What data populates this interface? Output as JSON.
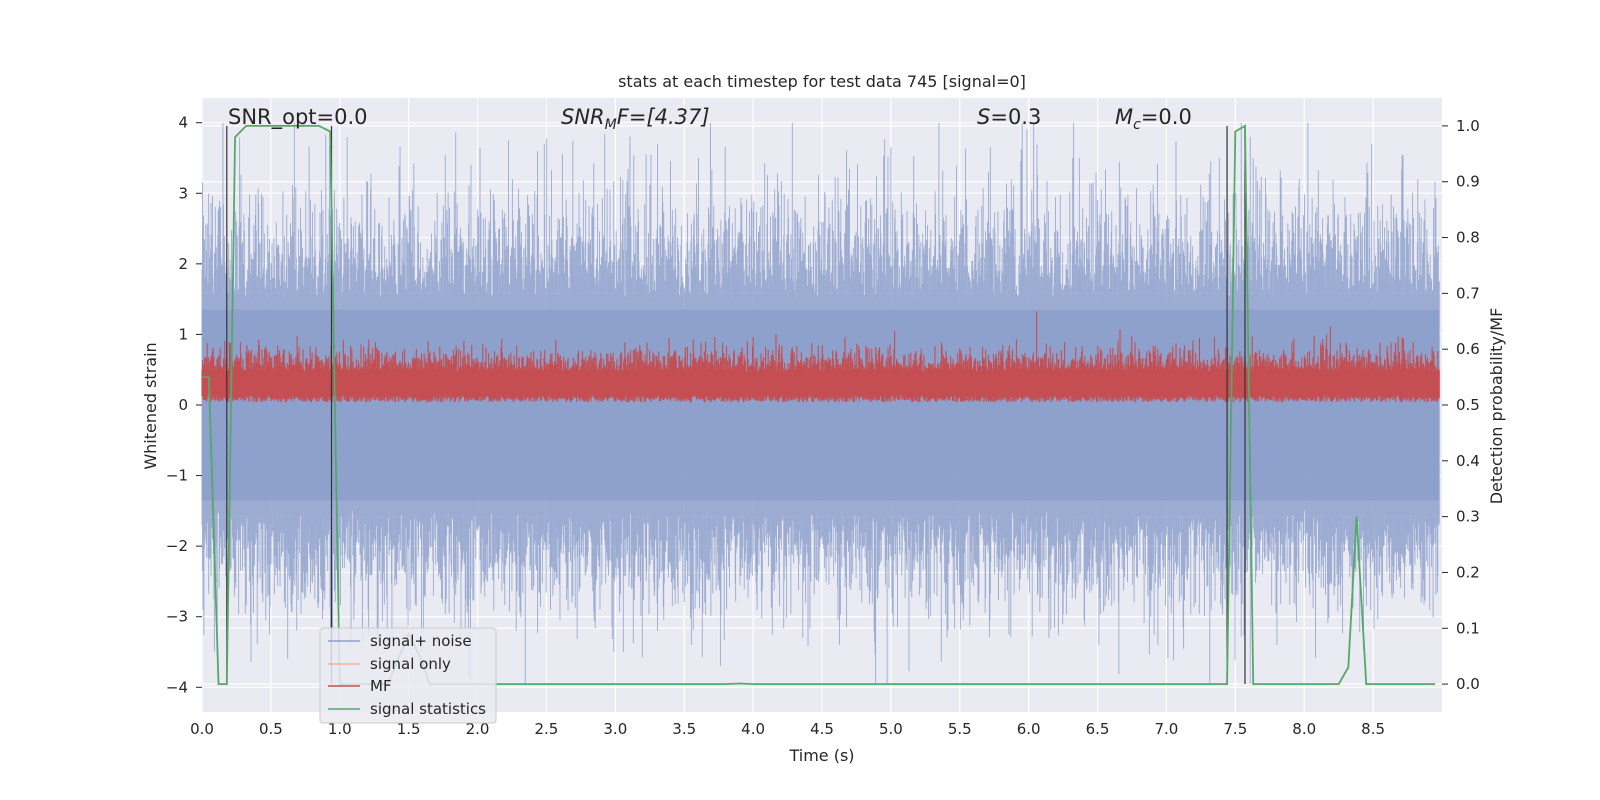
{
  "chart_data": {
    "type": "line",
    "title": "stats at each timestep for test data 745 [signal=0]",
    "xlabel": "Time (s)",
    "ylabel_left": "Whitened strain",
    "ylabel_right": "Detection probability/MF",
    "xlim": [
      0.0,
      9.0
    ],
    "ylim_left": [
      -4.35,
      4.35
    ],
    "ylim_right": [
      -0.05,
      1.05
    ],
    "xticks": [
      "0.0",
      "0.5",
      "1.0",
      "1.5",
      "2.0",
      "2.5",
      "3.0",
      "3.5",
      "4.0",
      "4.5",
      "5.0",
      "5.5",
      "6.0",
      "6.5",
      "7.0",
      "7.5",
      "8.0",
      "8.5"
    ],
    "yticks_left": [
      "4",
      "3",
      "2",
      "1",
      "0",
      "−1",
      "−2",
      "−3",
      "−4"
    ],
    "yticks_right": [
      "1.0",
      "0.9",
      "0.8",
      "0.7",
      "0.6",
      "0.5",
      "0.4",
      "0.3",
      "0.2",
      "0.1",
      "0.0"
    ],
    "grid": true,
    "legend_position": "lower-left",
    "annotations": {
      "snr_opt": "SNR_opt=0.0",
      "snr_mf_sym": "SNR",
      "snr_mf_sub": "M",
      "snr_mf_rest": "F=[4.37]",
      "s_sym": "S",
      "s_rest": "=0.3",
      "mc_sym": "M",
      "mc_sub": "c",
      "mc_rest": "=0.0"
    },
    "series": [
      {
        "name": "signal+ noise",
        "color": "#8da0cb",
        "axis": "left",
        "description_values": {
          "approx_range": [
            -3.8,
            4.0
          ],
          "mean": 0.0
        }
      },
      {
        "name": "signal only",
        "color": "#fc8d62",
        "axis": "left",
        "values": [
          0,
          0
        ]
      },
      {
        "name": "MF",
        "color": "#c44e52",
        "axis": "right",
        "description_values": {
          "approx_range": [
            0.5,
            0.6
          ]
        }
      },
      {
        "name": "signal statistics",
        "color": "#55a868",
        "axis": "right",
        "x": [
          0.0,
          0.05,
          0.12,
          0.18,
          0.24,
          0.32,
          0.5,
          0.7,
          0.85,
          0.93,
          1.0,
          1.08,
          1.2,
          1.35,
          1.5,
          1.6,
          1.65,
          2.0,
          3.0,
          3.8,
          3.9,
          4.0,
          5.0,
          6.0,
          7.0,
          7.44,
          7.5,
          7.57,
          7.63,
          7.7,
          8.0,
          8.25,
          8.32,
          8.38,
          8.45,
          8.5,
          8.95
        ],
        "y": [
          0.55,
          0.55,
          0.0,
          0.0,
          0.98,
          1.0,
          1.0,
          1.0,
          1.0,
          0.99,
          0.0,
          0.0,
          0.0,
          0.0,
          0.09,
          0.04,
          0.0,
          0.0,
          0.0,
          0.0,
          0.001,
          0.0,
          0.0,
          0.0,
          0.0,
          0.0,
          0.99,
          1.0,
          0.0,
          0.0,
          0.0,
          0.0,
          0.03,
          0.3,
          0.0,
          0.0,
          0.0
        ]
      }
    ],
    "vertical_markers": [
      0.18,
      0.94,
      7.44,
      7.57
    ]
  }
}
